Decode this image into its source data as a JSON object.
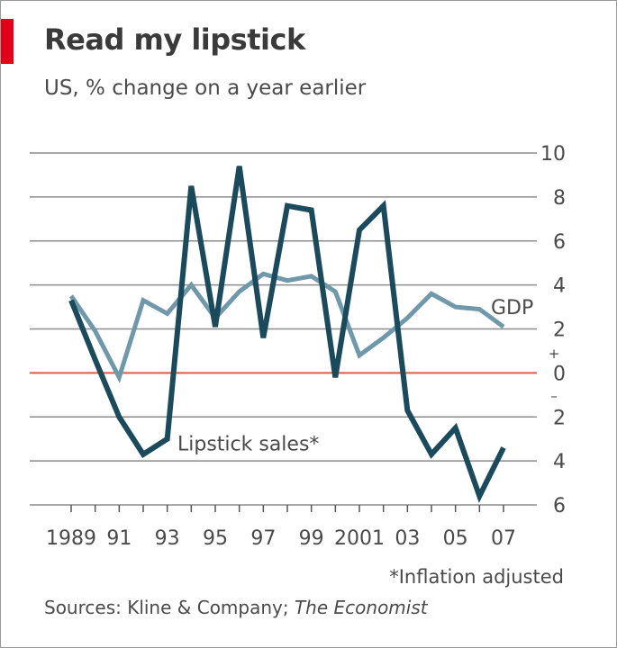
{
  "header": {
    "title": "Read my lipstick",
    "subtitle": "US, % change on a year earlier"
  },
  "footnote": "*Inflation adjusted",
  "sources": {
    "prefix": "Sources: Kline & Company; ",
    "italic": "The Economist"
  },
  "colors": {
    "accent_red": "#e3001b",
    "lipstick": "#1b4a5c",
    "gdp": "#6f98ab",
    "grid": "#8c8c8c",
    "zero_line": "#e05a4a",
    "text": "#4a4a4a"
  },
  "chart_data": {
    "type": "line",
    "title": "Read my lipstick",
    "subtitle": "US, % change on a year earlier",
    "x": [
      1989,
      1990,
      1991,
      1992,
      1993,
      1994,
      1995,
      1996,
      1997,
      1998,
      1999,
      2000,
      2001,
      2002,
      2003,
      2004,
      2005,
      2006,
      2007
    ],
    "x_tick_labels": [
      "1989",
      "91",
      "93",
      "95",
      "97",
      "99",
      "2001",
      "03",
      "05",
      "07"
    ],
    "x_tick_years": [
      1989,
      1991,
      1993,
      1995,
      1997,
      1999,
      2001,
      2003,
      2005,
      2007
    ],
    "ylim": [
      -6,
      10
    ],
    "y_ticks": [
      10,
      8,
      6,
      4,
      2,
      0,
      -2,
      -4,
      -6
    ],
    "y_tick_labels": [
      "10",
      "8",
      "6",
      "4",
      "2",
      "0",
      "2",
      "4",
      "6"
    ],
    "y_sign_markers": {
      "plus": "+",
      "minus": "–"
    },
    "grid": true,
    "zero_line": true,
    "series": [
      {
        "name": "GDP",
        "values": [
          3.5,
          1.9,
          -0.2,
          3.3,
          2.7,
          4.0,
          2.5,
          3.7,
          4.5,
          4.2,
          4.4,
          3.7,
          0.8,
          1.6,
          2.5,
          3.6,
          3.0,
          2.9,
          2.1
        ]
      },
      {
        "name": "Lipstick sales*",
        "values": [
          3.3,
          0.6,
          -2.0,
          -3.7,
          -3.0,
          8.5,
          2.1,
          9.4,
          1.6,
          7.6,
          7.4,
          -0.2,
          6.5,
          7.6,
          -1.7,
          -3.7,
          -2.5,
          -5.6,
          -3.4
        ]
      }
    ]
  }
}
